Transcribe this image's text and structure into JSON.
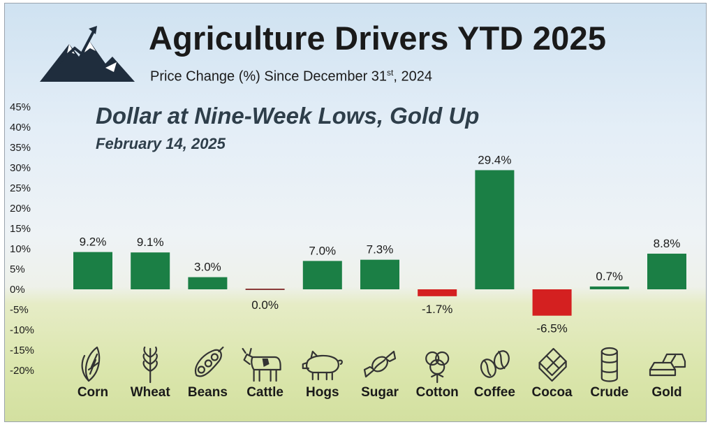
{
  "header": {
    "title": "Agriculture Drivers YTD 2025",
    "subtitle_main": "Price Change (%) Since December 31",
    "subtitle_sup": "st",
    "subtitle_tail": ", 2024",
    "headline": "Dollar at Nine-Week Lows, Gold Up",
    "date": "February 14, 2025"
  },
  "colors": {
    "positive": "#1b7f45",
    "negative": "#d42020",
    "zero_line": "#8a3a3a"
  },
  "chart_data": {
    "type": "bar",
    "title": "Agriculture Drivers YTD 2025",
    "ylabel": "Price Change (%) Since December 31st, 2024",
    "ylim": [
      -20,
      45
    ],
    "yticks": [
      45,
      40,
      35,
      30,
      25,
      20,
      15,
      10,
      5,
      0,
      -5,
      -10,
      -15,
      -20
    ],
    "ytick_labels": [
      "45%",
      "40%",
      "35%",
      "30%",
      "25%",
      "20%",
      "15%",
      "10%",
      "5%",
      "0%",
      "-5%",
      "-10%",
      "-15%",
      "-20%"
    ],
    "categories": [
      "Corn",
      "Wheat",
      "Beans",
      "Cattle",
      "Hogs",
      "Sugar",
      "Cotton",
      "Coffee",
      "Cocoa",
      "Crude",
      "Gold"
    ],
    "values": [
      9.2,
      9.1,
      3.0,
      0.0,
      7.0,
      7.3,
      -1.7,
      29.4,
      -6.5,
      0.7,
      8.8
    ],
    "labels": [
      "9.2%",
      "9.1%",
      "3.0%",
      "0.0%",
      "7.0%",
      "7.3%",
      "-1.7%",
      "29.4%",
      "-6.5%",
      "0.7%",
      "8.8%"
    ],
    "icons": [
      "corn-icon",
      "wheat-icon",
      "beans-icon",
      "cattle-icon",
      "hog-icon",
      "sugar-icon",
      "cotton-icon",
      "coffee-icon",
      "cocoa-icon",
      "crude-barrel-icon",
      "gold-bars-icon"
    ]
  }
}
